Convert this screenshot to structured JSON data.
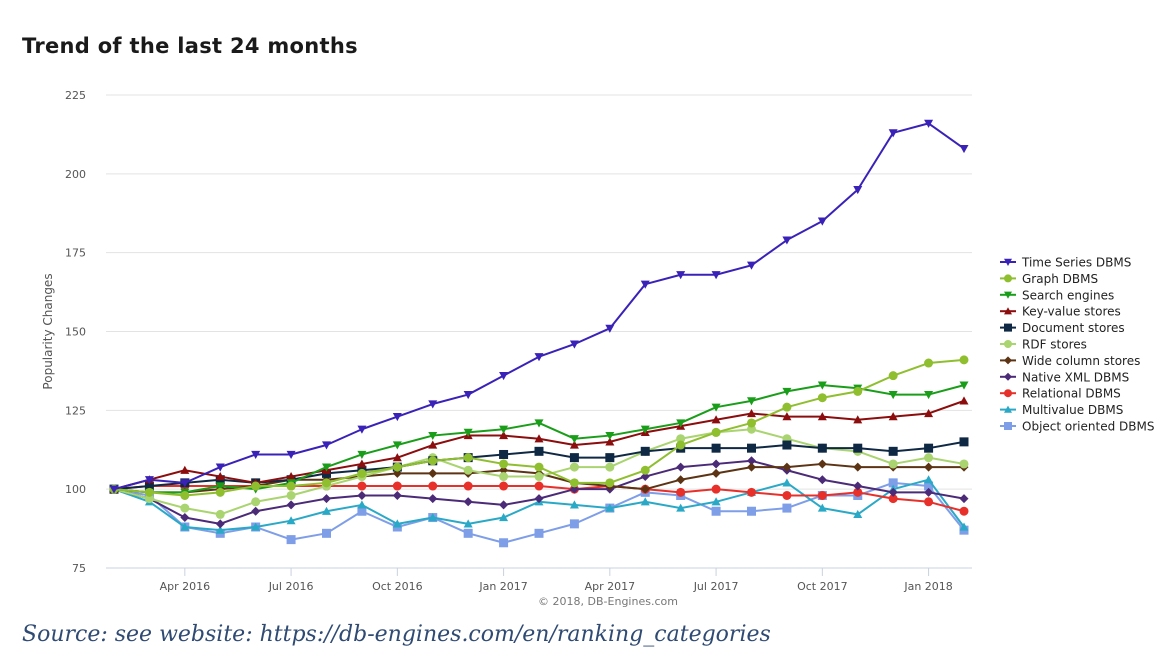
{
  "page": {
    "title": "Trend of the last 24 months",
    "caption": "Source: see website: https://db-engines.com/en/ranking_categories"
  },
  "chart_data": {
    "type": "line",
    "title": "Trend of the last 24 months",
    "xlabel": "",
    "ylabel": "Popularity Changes",
    "ylim": [
      75,
      225
    ],
    "yticks": [
      75,
      100,
      125,
      150,
      175,
      200,
      225
    ],
    "grid": true,
    "legend_position": "right",
    "credit": "© 2018, DB-Engines.com",
    "x": [
      "2016-02",
      "2016-03",
      "2016-04",
      "2016-05",
      "2016-06",
      "2016-07",
      "2016-08",
      "2016-09",
      "2016-10",
      "2016-11",
      "2016-12",
      "2017-01",
      "2017-02",
      "2017-03",
      "2017-04",
      "2017-05",
      "2017-06",
      "2017-07",
      "2017-08",
      "2017-09",
      "2017-10",
      "2017-11",
      "2017-12",
      "2018-01",
      "2018-02"
    ],
    "xticks": [
      {
        "x": "2016-04",
        "label": "Apr 2016"
      },
      {
        "x": "2016-07",
        "label": "Jul 2016"
      },
      {
        "x": "2016-10",
        "label": "Oct 2016"
      },
      {
        "x": "2017-01",
        "label": "Jan 2017"
      },
      {
        "x": "2017-04",
        "label": "Apr 2017"
      },
      {
        "x": "2017-07",
        "label": "Jul 2017"
      },
      {
        "x": "2017-10",
        "label": "Oct 2017"
      },
      {
        "x": "2018-01",
        "label": "Jan 2018"
      }
    ],
    "series": [
      {
        "name": "Time Series DBMS",
        "color": "#3a22b8",
        "marker": "triangle-down",
        "values": [
          100,
          103,
          102,
          107,
          111,
          111,
          114,
          119,
          123,
          127,
          130,
          136,
          142,
          146,
          151,
          165,
          168,
          168,
          171,
          179,
          185,
          195,
          213,
          216,
          208
        ]
      },
      {
        "name": "Graph DBMS",
        "color": "#8fbe2f",
        "marker": "circle",
        "values": [
          100,
          99,
          98,
          99,
          101,
          101,
          102,
          105,
          107,
          109,
          110,
          108,
          107,
          102,
          102,
          106,
          114,
          118,
          121,
          126,
          129,
          131,
          136,
          140,
          141
        ]
      },
      {
        "name": "Search engines",
        "color": "#1a9e1a",
        "marker": "triangle-down",
        "values": [
          100,
          99,
          99,
          101,
          100,
          102,
          107,
          111,
          114,
          117,
          118,
          119,
          121,
          116,
          117,
          119,
          121,
          126,
          128,
          131,
          133,
          132,
          130,
          130,
          133
        ]
      },
      {
        "name": "Key-value stores",
        "color": "#8b0d0d",
        "marker": "triangle-up",
        "values": [
          100,
          103,
          106,
          104,
          102,
          104,
          106,
          108,
          110,
          114,
          117,
          117,
          116,
          114,
          115,
          118,
          120,
          122,
          124,
          123,
          123,
          122,
          123,
          124,
          128
        ]
      },
      {
        "name": "Document stores",
        "color": "#0f2844",
        "marker": "square",
        "values": [
          100,
          101,
          102,
          103,
          102,
          103,
          105,
          106,
          107,
          109,
          110,
          111,
          112,
          110,
          110,
          112,
          113,
          113,
          113,
          114,
          113,
          113,
          112,
          113,
          115
        ]
      },
      {
        "name": "RDF stores",
        "color": "#a9d46f",
        "marker": "circle",
        "values": [
          100,
          97,
          94,
          92,
          96,
          98,
          101,
          104,
          107,
          110,
          106,
          104,
          104,
          107,
          107,
          112,
          116,
          118,
          119,
          116,
          113,
          112,
          108,
          110,
          108
        ]
      },
      {
        "name": "Wide column stores",
        "color": "#5c3313",
        "marker": "diamond",
        "values": [
          100,
          99,
          99,
          100,
          101,
          103,
          103,
          104,
          105,
          105,
          105,
          106,
          105,
          102,
          101,
          100,
          103,
          105,
          107,
          107,
          108,
          107,
          107,
          107,
          107
        ]
      },
      {
        "name": "Native XML DBMS",
        "color": "#4b2a78",
        "marker": "diamond",
        "values": [
          100,
          97,
          91,
          89,
          93,
          95,
          97,
          98,
          98,
          97,
          96,
          95,
          97,
          100,
          100,
          104,
          107,
          108,
          109,
          106,
          103,
          101,
          99,
          99,
          97
        ]
      },
      {
        "name": "Relational DBMS",
        "color": "#e8302a",
        "marker": "circle",
        "values": [
          100,
          101,
          101,
          101,
          101,
          101,
          101,
          101,
          101,
          101,
          101,
          101,
          101,
          100,
          101,
          100,
          99,
          100,
          99,
          98,
          98,
          99,
          97,
          96,
          93
        ]
      },
      {
        "name": "Multivalue DBMS",
        "color": "#2aa9c7",
        "marker": "triangle-up",
        "values": [
          100,
          96,
          88,
          87,
          88,
          90,
          93,
          95,
          89,
          91,
          89,
          91,
          96,
          95,
          94,
          96,
          94,
          96,
          99,
          102,
          94,
          92,
          100,
          103,
          88
        ]
      },
      {
        "name": "Object oriented DBMS",
        "color": "#7e9ee8",
        "marker": "square",
        "values": [
          100,
          98,
          88,
          86,
          88,
          84,
          86,
          93,
          88,
          91,
          86,
          83,
          86,
          89,
          94,
          99,
          98,
          93,
          93,
          94,
          98,
          98,
          102,
          101,
          87
        ]
      }
    ]
  }
}
